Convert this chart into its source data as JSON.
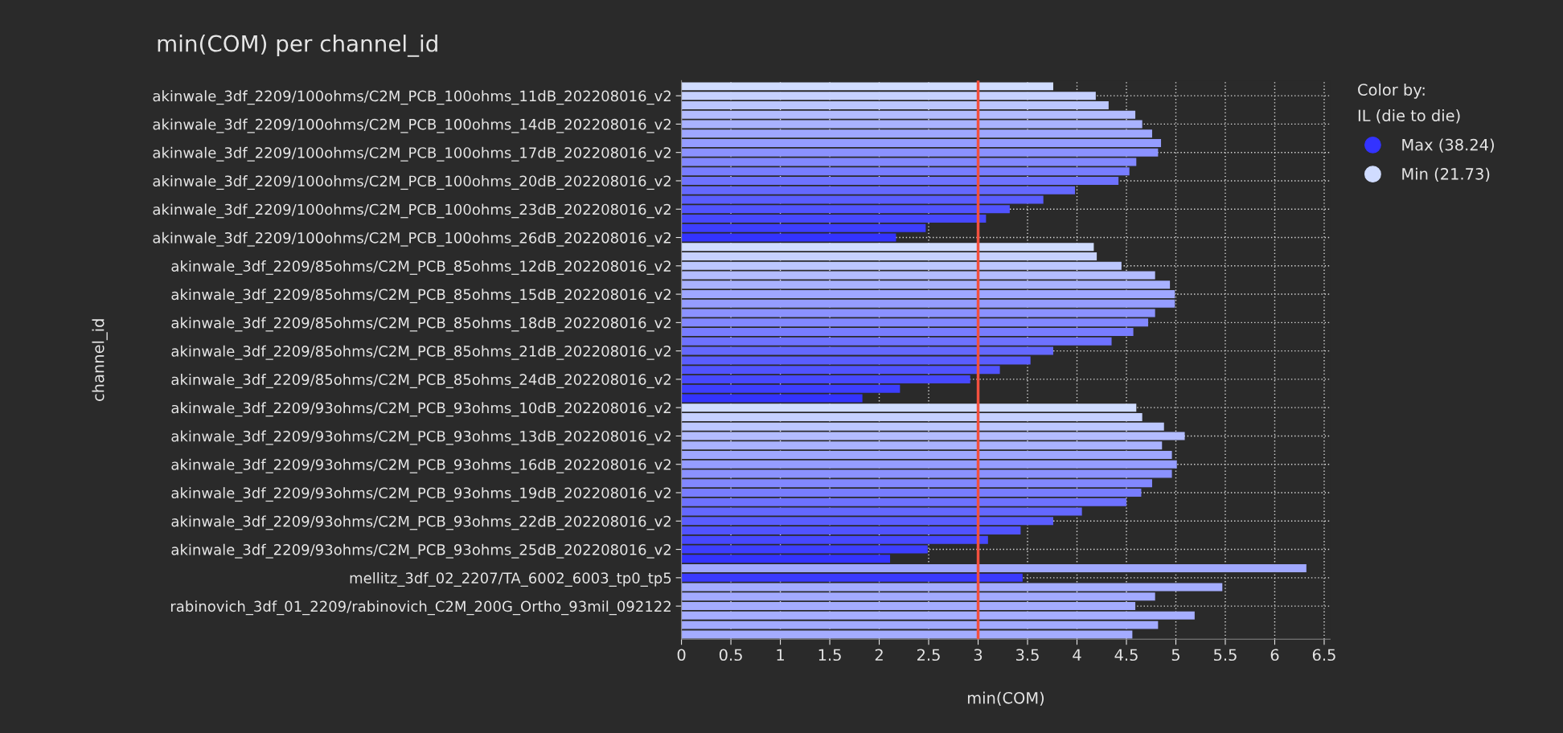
{
  "chart_data": {
    "type": "bar",
    "orientation": "horizontal",
    "title": "min(COM) per channel_id",
    "xlabel": "min(COM)",
    "ylabel": "channel_id",
    "legend_title": "Color by:\nIL (die to die)",
    "legend": "top right",
    "grid": true,
    "categories": [
      null,
      "akinwale_3df_2209/100ohms/C2M_PCB_100ohms_11dB_202208016_v2",
      null,
      null,
      "akinwale_3df_2209/100ohms/C2M_PCB_100ohms_14dB_202208016_v2",
      null,
      null,
      "akinwale_3df_2209/100ohms/C2M_PCB_100ohms_17dB_202208016_v2",
      null,
      null,
      "akinwale_3df_2209/100ohms/C2M_PCB_100ohms_20dB_202208016_v2",
      null,
      null,
      "akinwale_3df_2209/100ohms/C2M_PCB_100ohms_23dB_202208016_v2",
      null,
      null,
      "akinwale_3df_2209/100ohms/C2M_PCB_100ohms_26dB_202208016_v2",
      null,
      null,
      "akinwale_3df_2209/85ohms/C2M_PCB_85ohms_12dB_202208016_v2",
      null,
      null,
      "akinwale_3df_2209/85ohms/C2M_PCB_85ohms_15dB_202208016_v2",
      null,
      null,
      "akinwale_3df_2209/85ohms/C2M_PCB_85ohms_18dB_202208016_v2",
      null,
      null,
      "akinwale_3df_2209/85ohms/C2M_PCB_85ohms_21dB_202208016_v2",
      null,
      null,
      "akinwale_3df_2209/85ohms/C2M_PCB_85ohms_24dB_202208016_v2",
      null,
      null,
      "akinwale_3df_2209/93ohms/C2M_PCB_93ohms_10dB_202208016_v2",
      null,
      null,
      "akinwale_3df_2209/93ohms/C2M_PCB_93ohms_13dB_202208016_v2",
      null,
      null,
      "akinwale_3df_2209/93ohms/C2M_PCB_93ohms_16dB_202208016_v2",
      null,
      null,
      "akinwale_3df_2209/93ohms/C2M_PCB_93ohms_19dB_202208016_v2",
      null,
      null,
      "akinwale_3df_2209/93ohms/C2M_PCB_93ohms_22dB_202208016_v2",
      null,
      null,
      "akinwale_3df_2209/93ohms/C2M_PCB_93ohms_25dB_202208016_v2",
      null,
      null,
      "mellitz_3df_02_2207/TA_6002_6003_tp0_tp5",
      null,
      null,
      "rabinovich_3df_01_2209/rabinovich_C2M_200G_Ortho_93mil_092122",
      null,
      null,
      null
    ],
    "series": [
      {
        "values": [
          3.76,
          4.19,
          4.32,
          4.59,
          4.66,
          4.76,
          4.85,
          4.82,
          4.6,
          4.53,
          4.42,
          3.98,
          3.66,
          3.32,
          3.08,
          2.47,
          2.17,
          4.17,
          4.2,
          4.45,
          4.79,
          4.94,
          4.99,
          4.99,
          4.79,
          4.72,
          4.57,
          4.35,
          3.76,
          3.53,
          3.22,
          2.92,
          2.21,
          1.83,
          4.6,
          4.66,
          4.88,
          5.09,
          4.86,
          4.96,
          5.01,
          4.96,
          4.76,
          4.65,
          4.5,
          4.05,
          3.76,
          3.43,
          3.1,
          2.49,
          2.11,
          6.32,
          3.45,
          5.47,
          4.79,
          4.59,
          5.19,
          4.82,
          4.56
        ],
        "colors": [
          "#d0dcff",
          "#c6d1ff",
          "#bcc7ff",
          "#b3bcff",
          "#a9b2ff",
          "#9fa7ff",
          "#959dff",
          "#8b92ff",
          "#8288ff",
          "#787dff",
          "#6e72ff",
          "#6468ff",
          "#5a5dff",
          "#5153ff",
          "#4748ff",
          "#3d3eff",
          "#3333ff",
          "#d0dcff",
          "#c6d1ff",
          "#bcc7ff",
          "#b3bcff",
          "#a9b2ff",
          "#9fa7ff",
          "#959dff",
          "#8b92ff",
          "#8288ff",
          "#787dff",
          "#6e72ff",
          "#6468ff",
          "#5a5dff",
          "#5153ff",
          "#4748ff",
          "#3d3eff",
          "#3333ff",
          "#d0dcff",
          "#c6d1ff",
          "#bcc7ff",
          "#b3bcff",
          "#a9b2ff",
          "#9fa7ff",
          "#959dff",
          "#8b92ff",
          "#8288ff",
          "#787dff",
          "#6e72ff",
          "#6468ff",
          "#5a5dff",
          "#5153ff",
          "#4748ff",
          "#3d3eff",
          "#3333ff",
          "#a0a8ff",
          "#3a3aff",
          "#a4adff",
          "#a2aaff",
          "#a4acff",
          "#a6aeff",
          "#a2aaff",
          "#a4acff"
        ]
      },
      {
        "name": "Max (38.24)",
        "color": "#3333ff",
        "values": [
          null,
          null,
          null,
          null,
          null,
          null,
          null,
          null,
          null,
          null,
          null,
          null,
          null,
          null,
          null,
          null,
          null,
          null,
          null,
          null,
          null,
          null,
          null,
          null,
          null,
          null,
          null,
          null,
          null,
          null,
          null,
          null,
          null,
          null,
          null,
          null,
          null,
          null,
          null,
          null,
          null,
          null,
          null,
          null,
          null,
          null,
          null,
          null,
          null,
          null,
          null,
          null,
          null,
          null,
          null,
          null,
          null,
          null,
          null
        ]
      },
      {
        "name": "Min (21.73)",
        "color": "#d0dcff",
        "values": [
          null,
          null,
          null,
          null,
          null,
          null,
          null,
          null,
          null,
          null,
          null,
          null,
          null,
          null,
          null,
          null,
          null,
          null,
          null,
          null,
          null,
          null,
          null,
          null,
          null,
          null,
          null,
          null,
          null,
          null,
          null,
          null,
          null,
          null,
          null,
          null,
          null,
          null,
          null,
          null,
          null,
          null,
          null,
          null,
          null,
          null,
          null,
          null,
          null,
          null,
          null,
          null,
          null,
          null,
          null,
          null,
          null,
          null,
          null
        ]
      }
    ],
    "xlim": [
      0,
      6.56
    ],
    "xticks": [
      0,
      0.5,
      1,
      1.5,
      2,
      2.5,
      3,
      3.5,
      4,
      4.5,
      5,
      5.5,
      6,
      6.5
    ],
    "ref_lines": [
      {
        "axis": "x",
        "value": 3,
        "color": "#f2503f"
      }
    ]
  }
}
